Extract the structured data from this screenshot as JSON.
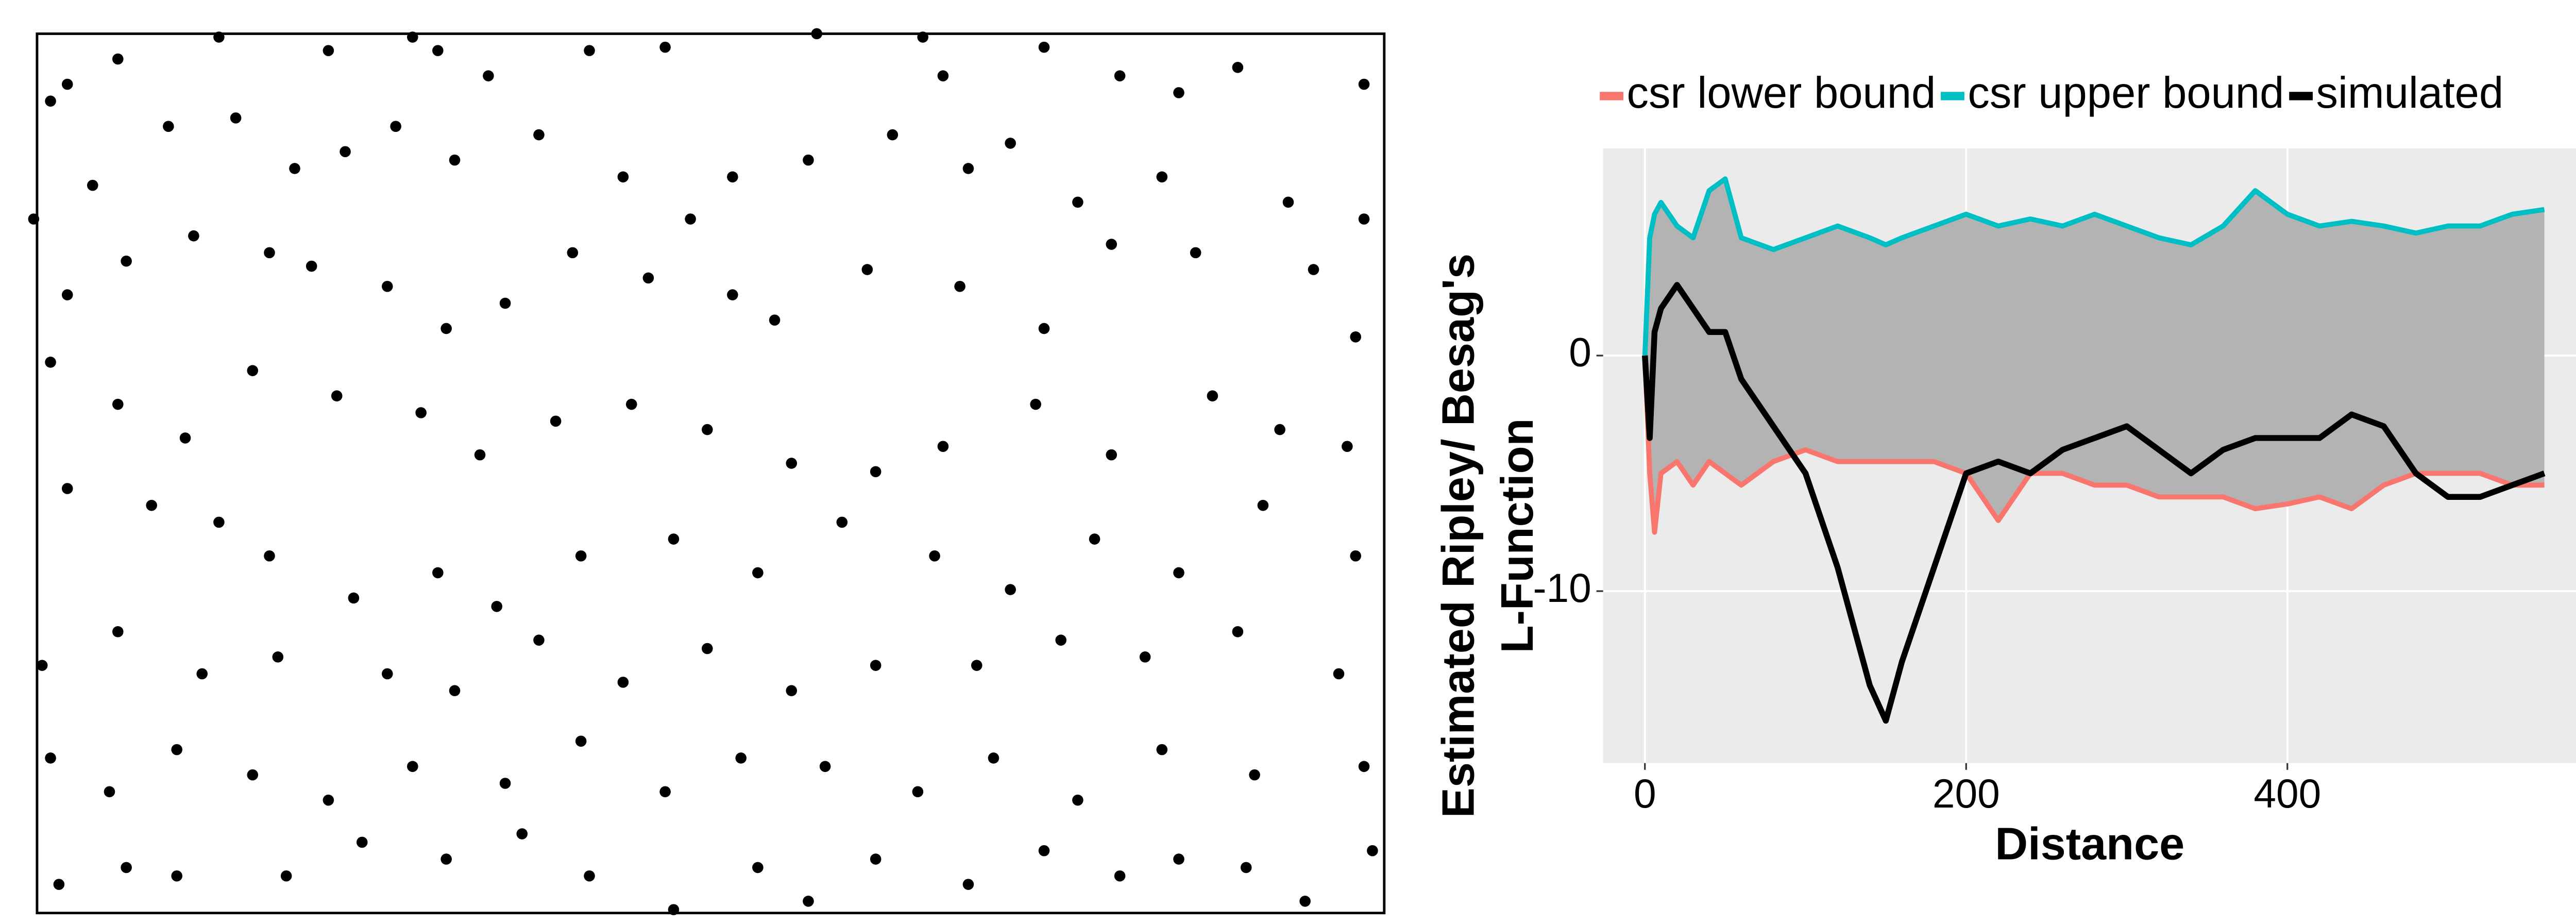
{
  "chart_data": [
    {
      "type": "scatter",
      "color": "#000000",
      "xlim": [
        22,
        822
      ],
      "ylim": [
        542,
        20
      ],
      "x": [
        30,
        40,
        70,
        130,
        195,
        245,
        260,
        290,
        350,
        395,
        485,
        548,
        560,
        620,
        665,
        700,
        735,
        810,
        20,
        55,
        100,
        140,
        175,
        205,
        235,
        270,
        320,
        370,
        410,
        435,
        480,
        530,
        575,
        600,
        640,
        690,
        765,
        810,
        40,
        75,
        115,
        160,
        185,
        230,
        265,
        300,
        340,
        385,
        435,
        460,
        515,
        570,
        620,
        660,
        710,
        780,
        805,
        30,
        70,
        110,
        150,
        200,
        250,
        285,
        330,
        375,
        420,
        470,
        520,
        560,
        615,
        660,
        720,
        760,
        800,
        40,
        90,
        130,
        160,
        210,
        260,
        295,
        345,
        400,
        450,
        500,
        555,
        600,
        650,
        700,
        750,
        805,
        25,
        70,
        120,
        165,
        230,
        270,
        320,
        370,
        420,
        470,
        520,
        580,
        630,
        680,
        735,
        795,
        30,
        65,
        105,
        150,
        195,
        245,
        300,
        345,
        395,
        440,
        490,
        545,
        590,
        640,
        690,
        745,
        810,
        35,
        75,
        105,
        170,
        215,
        265,
        310,
        350,
        400,
        450,
        480,
        520,
        575,
        620,
        665,
        700,
        740,
        775,
        815
      ],
      "y": [
        60,
        50,
        35,
        22,
        30,
        22,
        30,
        45,
        30,
        28,
        20,
        22,
        45,
        28,
        45,
        55,
        40,
        50,
        130,
        110,
        75,
        70,
        100,
        90,
        75,
        95,
        80,
        105,
        130,
        105,
        95,
        80,
        100,
        85,
        120,
        105,
        120,
        130,
        175,
        155,
        140,
        150,
        158,
        170,
        195,
        180,
        150,
        165,
        175,
        190,
        160,
        170,
        195,
        145,
        150,
        160,
        200,
        215,
        240,
        260,
        220,
        235,
        245,
        270,
        250,
        240,
        255,
        275,
        280,
        265,
        240,
        270,
        235,
        255,
        265,
        290,
        300,
        310,
        330,
        355,
        340,
        360,
        330,
        320,
        340,
        310,
        330,
        350,
        320,
        340,
        300,
        330,
        395,
        375,
        400,
        390,
        400,
        410,
        380,
        405,
        385,
        410,
        395,
        395,
        380,
        390,
        375,
        400,
        450,
        470,
        445,
        460,
        475,
        455,
        465,
        440,
        470,
        450,
        455,
        470,
        450,
        475,
        445,
        460,
        455,
        525,
        515,
        520,
        520,
        500,
        510,
        495,
        520,
        540,
        515,
        535,
        510,
        525,
        505,
        520,
        510,
        515,
        535,
        505
      ]
    },
    {
      "type": "line",
      "ylabel": [
        "Estimated Ripley/ Besag's",
        "L-Function"
      ],
      "xlabel": "Distance",
      "xlim": [
        -26,
        580
      ],
      "ylim": [
        -17.3,
        8.8
      ],
      "xticks": [
        0,
        200,
        400
      ],
      "yticks": [
        -10,
        0
      ],
      "grid": true,
      "legend": "top",
      "ribbon_color": "#b3b3b3",
      "x": [
        0,
        3,
        6,
        10,
        20,
        30,
        40,
        50,
        60,
        80,
        100,
        120,
        140,
        150,
        160,
        180,
        200,
        220,
        240,
        260,
        280,
        300,
        320,
        340,
        360,
        380,
        400,
        420,
        440,
        460,
        480,
        500,
        520,
        540,
        560
      ],
      "series": [
        {
          "name": "csr lower bound",
          "color": "#f8766d",
          "values": [
            0,
            -5,
            -7.5,
            -5,
            -4.5,
            -5.5,
            -4.5,
            -5,
            -5.5,
            -4.5,
            -4,
            -4.5,
            -4.5,
            -4.5,
            -4.5,
            -4.5,
            -5,
            -7,
            -5,
            -5,
            -5.5,
            -5.5,
            -6,
            -6,
            -6,
            -6.5,
            -6.3,
            -6,
            -6.5,
            -5.5,
            -5,
            -5,
            -5,
            -5.5,
            -5.5
          ]
        },
        {
          "name": "csr upper bound",
          "color": "#00bfc4",
          "values": [
            0,
            5,
            6,
            6.5,
            5.5,
            5,
            7,
            7.5,
            5,
            4.5,
            5,
            5.5,
            5,
            4.7,
            5,
            5.5,
            6,
            5.5,
            5.8,
            5.5,
            6,
            5.5,
            5,
            4.7,
            5.5,
            7,
            6,
            5.5,
            5.7,
            5.5,
            5.2,
            5.5,
            5.5,
            6,
            6.2
          ]
        },
        {
          "name": "simulated",
          "color": "#000000",
          "values": [
            0,
            -3.5,
            1,
            2,
            3,
            2,
            1,
            1,
            -1,
            -3,
            -5,
            -9,
            -14,
            -15.5,
            -13,
            -9,
            -5,
            -4.5,
            -5,
            -4,
            -3.5,
            -3,
            -4,
            -5,
            -4,
            -3.5,
            -3.5,
            -3.5,
            -2.5,
            -3,
            -5,
            -6,
            -6,
            -5.5,
            -5
          ]
        }
      ]
    }
  ]
}
